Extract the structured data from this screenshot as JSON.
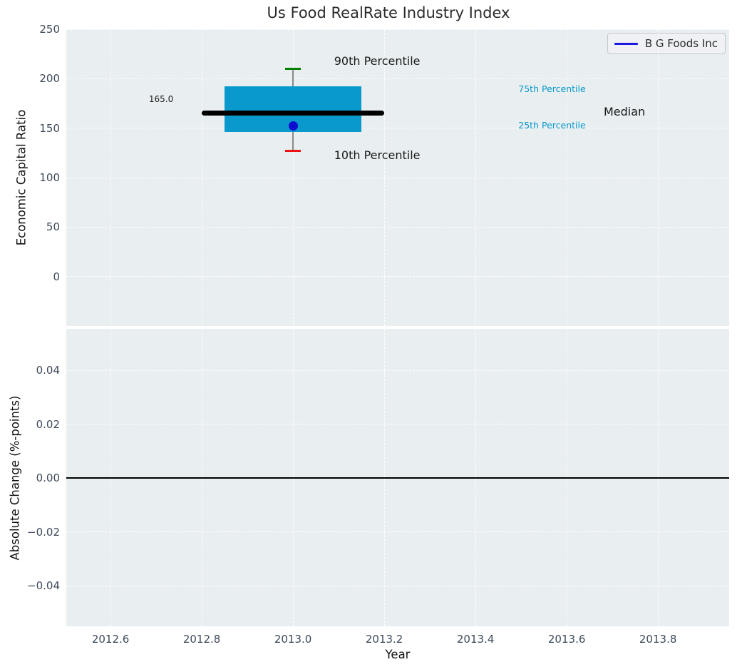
{
  "title": "Us Food RealRate Industry Index",
  "legend": {
    "label": "B G Foods Inc",
    "line_color": "#1b1be0"
  },
  "colors": {
    "plot_bg": "#e9eef0",
    "grid": "#ffffff",
    "box_fill": "#0999cd",
    "median_line": "#000000",
    "whisker": "#8a8a8a",
    "cap_90th": "#008000",
    "cap_10th": "#ee1111",
    "company_dot": "#0d0dcf",
    "zero_line": "#000000",
    "tick_label": "#3e4a5a",
    "axis_label": "#111111",
    "title": "#2b2b2b"
  },
  "x_axis": {
    "label": "Year",
    "ticks": [
      2012.6,
      2012.8,
      2013.0,
      2013.2,
      2013.4,
      2013.6,
      2013.8
    ],
    "tick_labels": [
      "2012.6",
      "2012.8",
      "2013.0",
      "2013.2",
      "2013.4",
      "2013.6",
      "2013.8"
    ],
    "xlim": [
      2012.503,
      2013.956
    ]
  },
  "chart_data": [
    {
      "type": "box",
      "title": "Us Food RealRate Industry Index",
      "ylabel": "Economic Capital Ratio",
      "x_center": 2013.0,
      "percentiles": {
        "p10": 127,
        "p25": 146,
        "median": 165,
        "p75": 192,
        "p90": 210
      },
      "company_point": {
        "name": "B G Foods Inc",
        "x": 2013.0,
        "y": 152
      },
      "median_label": "165.0",
      "box_x_range": [
        2012.85,
        2013.15
      ],
      "median_x_range": [
        2012.8,
        2013.2
      ],
      "cap_halfwidth": 0.017,
      "ylim": [
        -50,
        250
      ],
      "yticks": {
        "values": [
          0,
          50,
          100,
          150,
          200,
          250
        ],
        "labels": [
          "0",
          "50",
          "100",
          "150",
          "200",
          "250"
        ]
      },
      "grid": true,
      "legend_position": "upper right",
      "annotations": [
        {
          "text": "90th Percentile",
          "x": 2013.09,
          "y": 217,
          "size": 16,
          "color": "#1a1a1a"
        },
        {
          "text": "10th Percentile",
          "x": 2013.09,
          "y": 122,
          "size": 16,
          "color": "#1a1a1a"
        },
        {
          "text": "75th Percentile",
          "x": 2013.494,
          "y": 189,
          "size": 12.5,
          "color": "#0999cd"
        },
        {
          "text": "25th Percentile",
          "x": 2013.494,
          "y": 152,
          "size": 12.5,
          "color": "#0999cd"
        },
        {
          "text": "Median",
          "x": 2013.681,
          "y": 166,
          "size": 16,
          "color": "#1a1a1a"
        },
        {
          "text": "165.0",
          "x": 2012.684,
          "y": 179,
          "size": 12,
          "color": "#1a1a1a"
        }
      ]
    },
    {
      "type": "line",
      "ylabel": "Absolute Change (%-points)",
      "xlabel": "Year",
      "zero_line_y": 0.0,
      "ylim": [
        -0.055,
        0.0555
      ],
      "yticks": {
        "values": [
          -0.04,
          -0.02,
          0.0,
          0.02,
          0.04
        ],
        "labels": [
          "−0.04",
          "−0.02",
          "0.00",
          "0.02",
          "0.04"
        ]
      },
      "grid": true,
      "series": []
    }
  ]
}
